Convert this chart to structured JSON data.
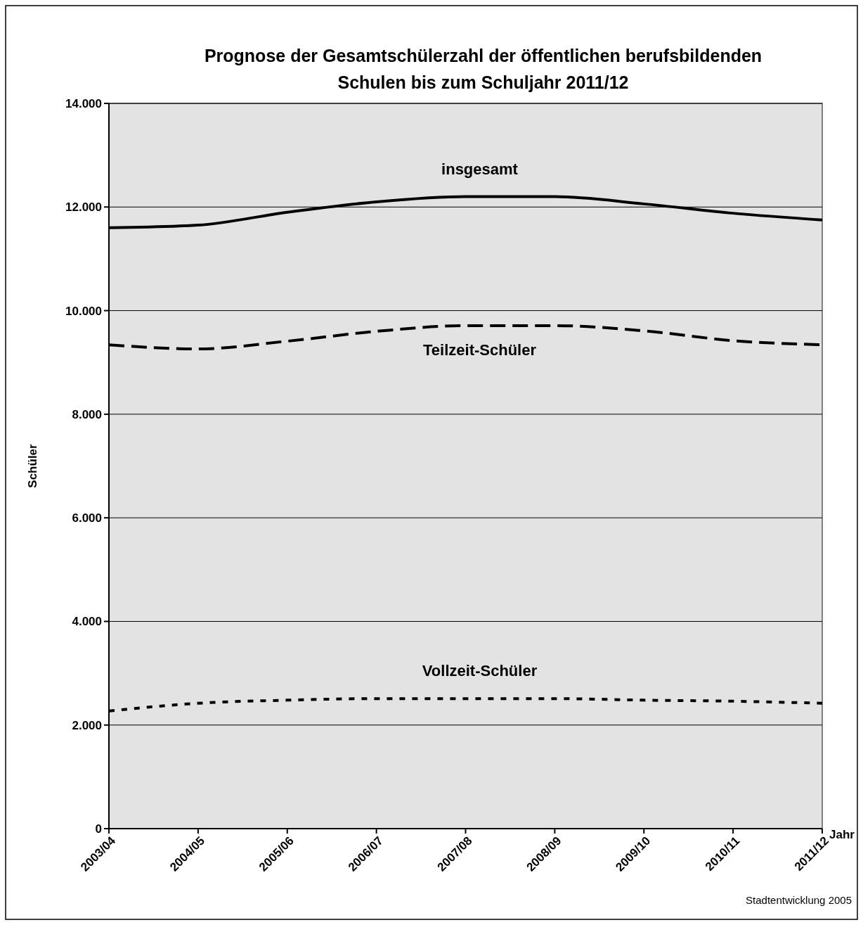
{
  "chart_data": {
    "type": "line",
    "title": "Prognose der Gesamtschülerzahl der öffentlichen berufsbildenden\nSchulen bis zum Schuljahr 2011/12",
    "xlabel": "Jahr",
    "ylabel": "Schüler",
    "categories": [
      "2003/04",
      "2004/05",
      "2005/06",
      "2006/07",
      "2007/08",
      "2008/09",
      "2009/10",
      "2010/11",
      "2011/12"
    ],
    "series": [
      {
        "name": "insgesamt",
        "color": "#000000",
        "line_style": "solid",
        "values": [
          11600,
          11650,
          11900,
          12100,
          12200,
          12200,
          12060,
          11880,
          11750
        ]
      },
      {
        "name": "Teilzeit-Schüler",
        "color": "#000000",
        "line_style": "dashed",
        "values": [
          9340,
          9260,
          9410,
          9600,
          9710,
          9710,
          9610,
          9420,
          9340
        ]
      },
      {
        "name": "Vollzeit-Schüler",
        "color": "#000000",
        "line_style": "dotted",
        "values": [
          2270,
          2420,
          2480,
          2510,
          2510,
          2510,
          2480,
          2460,
          2420
        ]
      }
    ],
    "ylim": [
      0,
      14000
    ],
    "yticks": [
      {
        "value": 0,
        "label": "0"
      },
      {
        "value": 2000,
        "label": "2.000"
      },
      {
        "value": 4000,
        "label": "4.000"
      },
      {
        "value": 6000,
        "label": "6.000"
      },
      {
        "value": 8000,
        "label": "8.000"
      },
      {
        "value": 10000,
        "label": "10.000"
      },
      {
        "value": 12000,
        "label": "12.000"
      },
      {
        "value": 14000,
        "label": "14.000"
      }
    ],
    "grid": "y",
    "legend": false,
    "marker": "none",
    "annotations": [
      "Stadtentwicklung 2005"
    ]
  }
}
